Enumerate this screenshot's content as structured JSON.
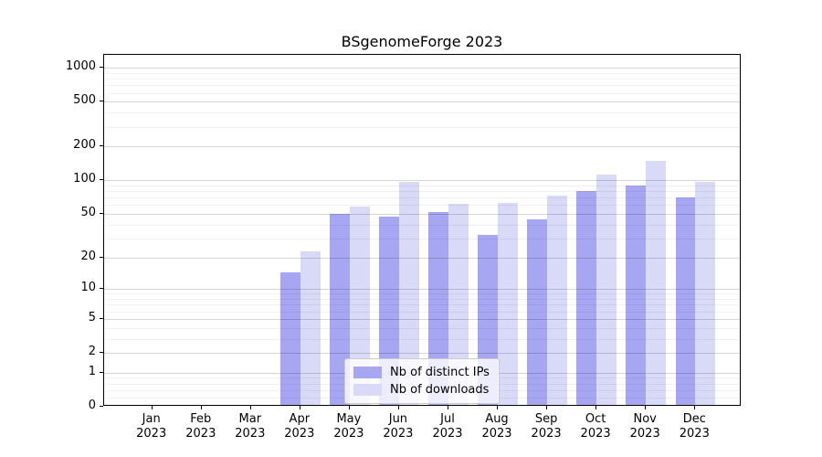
{
  "chart_data": {
    "type": "bar",
    "title": "BSgenomeForge 2023",
    "categories": [
      "Jan 2023",
      "Feb 2023",
      "Mar 2023",
      "Apr 2023",
      "May 2023",
      "Jun 2023",
      "Jul 2023",
      "Aug 2023",
      "Sep 2023",
      "Oct 2023",
      "Nov 2023",
      "Dec 2023"
    ],
    "series": [
      {
        "name": "Nb of distinct IPs",
        "color": "#a6a6f2",
        "values": [
          0,
          0,
          0,
          14,
          48,
          45,
          50,
          31,
          43,
          77,
          87,
          68
        ]
      },
      {
        "name": "Nb of downloads",
        "color": "#d9d9f8",
        "values": [
          0,
          0,
          0,
          22,
          56,
          94,
          59,
          60,
          70,
          108,
          143,
          93
        ]
      }
    ],
    "xlabel": "",
    "ylabel": "",
    "yscale": "log1p",
    "yticks": [
      1000,
      500,
      200,
      100,
      50,
      20,
      10,
      5,
      2,
      1,
      0
    ],
    "yticks_minor": [
      900,
      800,
      700,
      600,
      400,
      300,
      90,
      80,
      70,
      60,
      40,
      30,
      9,
      8,
      7,
      6,
      4,
      3,
      0.8,
      0.6,
      0.4,
      0.2
    ],
    "ylim": [
      0,
      1300
    ],
    "grid": true,
    "legend_position": "lower center"
  }
}
